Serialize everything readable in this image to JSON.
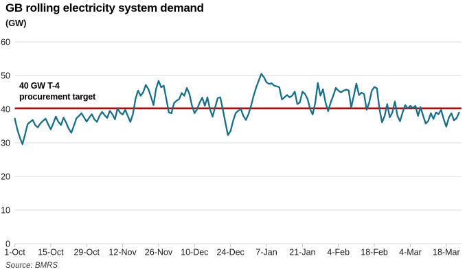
{
  "chart_data": {
    "type": "line",
    "title": "GB rolling electricity system demand",
    "unit_label": "(GW)",
    "source": "Source: BMRS",
    "annotation": {
      "line1": "40 GW T-4",
      "line2": "procurement target"
    },
    "target_line": {
      "value": 40,
      "label": "40 GW T-4 procurement target",
      "color": "#a80c0c"
    },
    "line_color": "#176e8a",
    "grid_color": "#d9d9d9",
    "grid": "horizontal",
    "legend": "none",
    "ylim": [
      0,
      60
    ],
    "yticks": [
      0,
      10,
      20,
      30,
      40,
      50,
      60
    ],
    "xticks": [
      {
        "label": "1-Oct",
        "day": 0
      },
      {
        "label": "15-Oct",
        "day": 14
      },
      {
        "label": "29-Oct",
        "day": 28
      },
      {
        "label": "12-Nov",
        "day": 42
      },
      {
        "label": "26-Nov",
        "day": 56
      },
      {
        "label": "10-Dec",
        "day": 70
      },
      {
        "label": "24-Dec",
        "day": 84
      },
      {
        "label": "7-Jan",
        "day": 98
      },
      {
        "label": "21-Jan",
        "day": 112
      },
      {
        "label": "4-Feb",
        "day": 126
      },
      {
        "label": "18-Feb",
        "day": 140
      },
      {
        "label": "4-Mar",
        "day": 154
      },
      {
        "label": "18-Mar",
        "day": 168
      }
    ],
    "series": [
      {
        "name": "GB rolling electricity system demand (GW)",
        "start_date": "1-Oct",
        "end_date": "23-Mar",
        "cadence": "daily",
        "values": [
          37.2,
          34.0,
          31.5,
          29.6,
          32.5,
          35.5,
          36.2,
          36.8,
          35.2,
          34.6,
          35.8,
          36.5,
          37.2,
          35.5,
          34.0,
          35.8,
          37.8,
          36.2,
          35.3,
          37.5,
          36.0,
          34.2,
          33.0,
          35.0,
          37.3,
          38.0,
          38.8,
          37.5,
          36.3,
          37.5,
          38.5,
          37.0,
          36.2,
          38.0,
          39.2,
          38.2,
          37.4,
          39.5,
          38.5,
          37.0,
          40.2,
          39.0,
          38.4,
          39.8,
          38.0,
          36.2,
          38.5,
          43.0,
          45.5,
          44.0,
          45.0,
          47.2,
          46.0,
          43.8,
          41.2,
          46.0,
          48.4,
          46.5,
          47.0,
          43.0,
          39.0,
          38.8,
          41.8,
          42.5,
          43.0,
          44.8,
          44.0,
          46.3,
          44.5,
          41.0,
          38.8,
          40.0,
          42.0,
          43.4,
          41.0,
          43.5,
          40.0,
          37.8,
          40.5,
          43.3,
          43.5,
          40.0,
          36.0,
          32.3,
          33.5,
          36.5,
          38.8,
          39.5,
          40.1,
          38.0,
          36.8,
          38.5,
          41.0,
          44.0,
          46.5,
          48.5,
          50.5,
          49.5,
          48.0,
          47.5,
          47.7,
          47.0,
          46.8,
          46.5,
          42.9,
          43.5,
          44.2,
          43.5,
          44.0,
          45.2,
          41.5,
          42.0,
          45.2,
          44.5,
          43.0,
          40.0,
          38.4,
          42.0,
          47.8,
          44.0,
          45.9,
          42.0,
          39.4,
          42.0,
          44.0,
          46.3,
          45.5,
          45.0,
          45.5,
          45.8,
          45.6,
          40.5,
          44.0,
          47.6,
          44.2,
          44.9,
          44.5,
          39.8,
          42.0,
          45.5,
          46.6,
          46.2,
          40.0,
          36.1,
          38.0,
          41.5,
          37.6,
          39.0,
          42.3,
          38.0,
          36.4,
          39.0,
          41.2,
          40.2,
          41.0,
          40.3,
          41.0,
          38.0,
          40.6,
          38.0,
          35.7,
          36.5,
          38.8,
          37.1,
          39.0,
          38.5,
          39.8,
          37.0,
          34.8,
          37.5,
          38.8,
          36.7,
          37.3,
          39.0
        ]
      }
    ]
  }
}
